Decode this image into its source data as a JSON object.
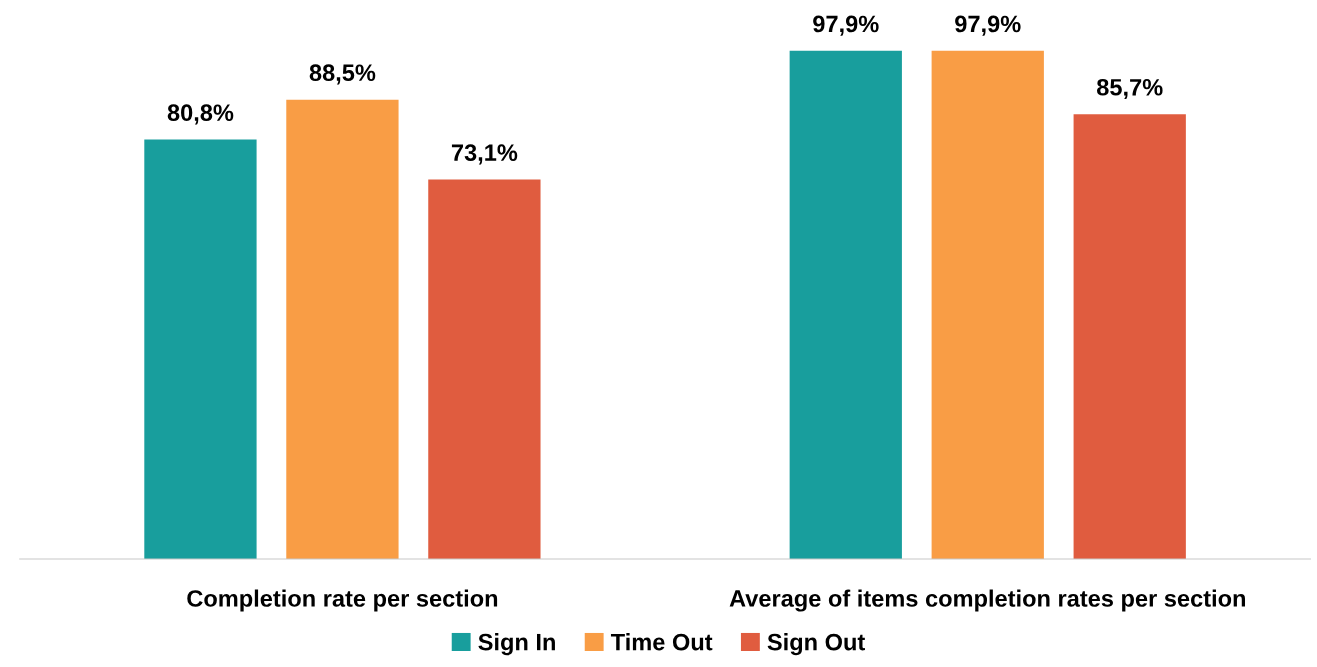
{
  "chart_data": {
    "type": "bar",
    "categories": [
      "Completion rate per section",
      "Average of items completion rates per section"
    ],
    "series": [
      {
        "name": "Sign In",
        "color": "#189e9d",
        "values": [
          80.8,
          97.9
        ],
        "value_labels": [
          "80,8%",
          "97,9%"
        ]
      },
      {
        "name": "Time Out",
        "color": "#f99d45",
        "values": [
          88.5,
          97.9
        ],
        "value_labels": [
          "88,5%",
          "97,9%"
        ]
      },
      {
        "name": "Sign Out",
        "color": "#e05c3f",
        "values": [
          73.1,
          85.7
        ],
        "value_labels": [
          "73,1%",
          "85,7%"
        ]
      }
    ],
    "tick_labels": "x",
    "grid": false,
    "legend": "bottom"
  }
}
